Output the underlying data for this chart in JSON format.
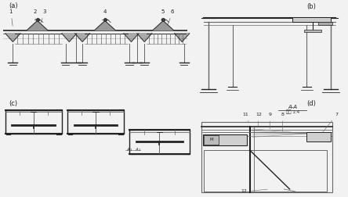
{
  "bg": "#f2f2f2",
  "lc": "#666666",
  "dc": "#222222",
  "wc": "#ffffff",
  "label_a": "(a)",
  "label_b": "(b)",
  "label_c": "(c)",
  "label_d": "(d)",
  "aa_label": "A-A",
  "scale_label": "比例 1:4"
}
